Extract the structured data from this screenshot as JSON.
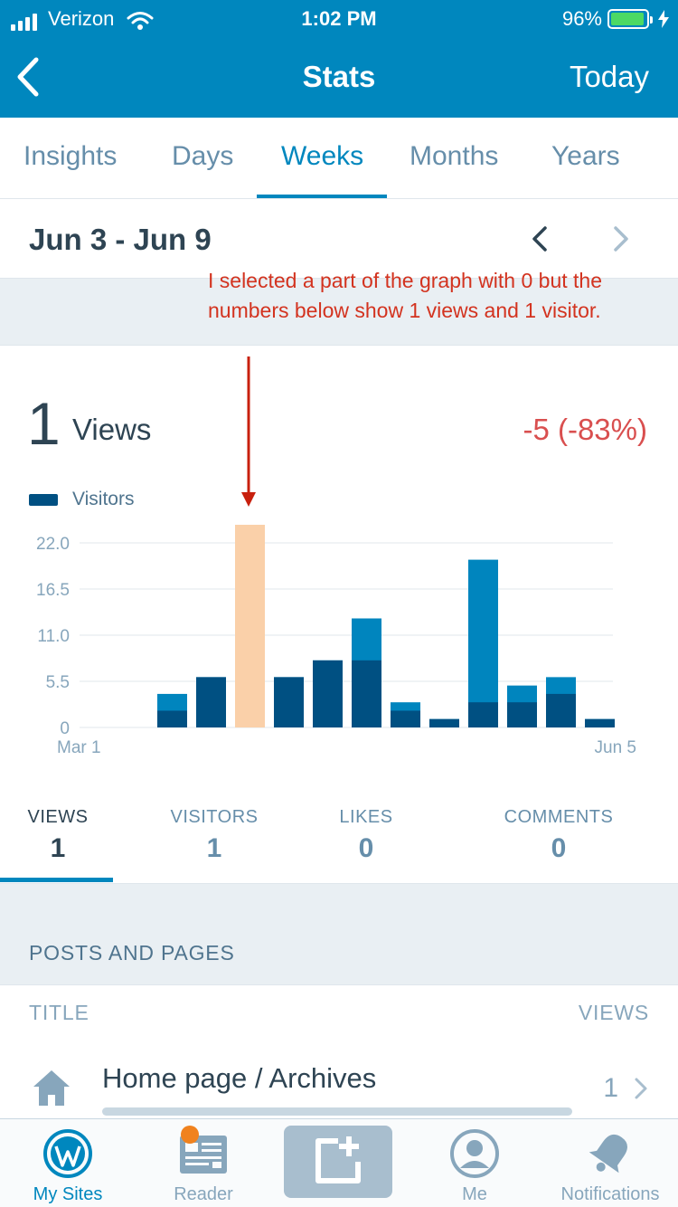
{
  "status_bar": {
    "carrier": "Verizon",
    "time": "1:02 PM",
    "battery": "96%",
    "battery_level": 0.96
  },
  "nav": {
    "title": "Stats",
    "right_label": "Today"
  },
  "tabs": [
    {
      "label": "Insights"
    },
    {
      "label": "Days"
    },
    {
      "label": "Weeks",
      "active": true
    },
    {
      "label": "Months"
    },
    {
      "label": "Years"
    }
  ],
  "date_range": "Jun 3 - Jun 9",
  "annotation": "I selected a part of the graph with 0 but the numbers below show 1 views and 1 visitor.",
  "summary": {
    "views_count": "1",
    "views_label": "Views",
    "change": "-5 (-83%)"
  },
  "chart_data": {
    "type": "bar",
    "legend": [
      "Visitors"
    ],
    "y_ticks": [
      "22.0",
      "16.5",
      "11.0",
      "5.5",
      "0"
    ],
    "ylim": [
      0,
      25
    ],
    "x_first_label": "Mar 1",
    "x_last_label": "Jun 5",
    "bars": [
      {
        "views": 4,
        "visitors": 2
      },
      {
        "views": 6,
        "visitors": 6
      },
      {
        "views": 25.5,
        "visitors": 0,
        "selected": true
      },
      {
        "views": 6,
        "visitors": 6
      },
      {
        "views": 8,
        "visitors": 8
      },
      {
        "views": 13,
        "visitors": 8
      },
      {
        "views": 3,
        "visitors": 2
      },
      {
        "views": 1,
        "visitors": 1
      },
      {
        "views": 20,
        "visitors": 3
      },
      {
        "views": 5,
        "visitors": 3
      },
      {
        "views": 6,
        "visitors": 4
      },
      {
        "views": 1,
        "visitors": 1
      }
    ],
    "colors": {
      "views": "#0085be",
      "visitors": "#005082",
      "selected": "#fad0a9",
      "grid": "#f0f3f5"
    }
  },
  "stats": [
    {
      "label": "VIEWS",
      "value": "1",
      "active": true
    },
    {
      "label": "VISITORS",
      "value": "1"
    },
    {
      "label": "LIKES",
      "value": "0"
    },
    {
      "label": "COMMENTS",
      "value": "0"
    }
  ],
  "posts": {
    "section_title": "POSTS AND PAGES",
    "col_title": "TITLE",
    "col_views": "VIEWS",
    "rows": [
      {
        "title": "Home page / Archives",
        "views": "1",
        "icon": "home-icon"
      }
    ]
  },
  "tabbar": [
    {
      "label": "My Sites",
      "icon": "wordpress-icon",
      "active": true
    },
    {
      "label": "Reader",
      "icon": "reader-icon",
      "badge": true
    },
    {
      "label": "",
      "icon": "new-post-icon"
    },
    {
      "label": "Me",
      "icon": "profile-icon"
    },
    {
      "label": "Notifications",
      "icon": "bell-icon"
    }
  ]
}
